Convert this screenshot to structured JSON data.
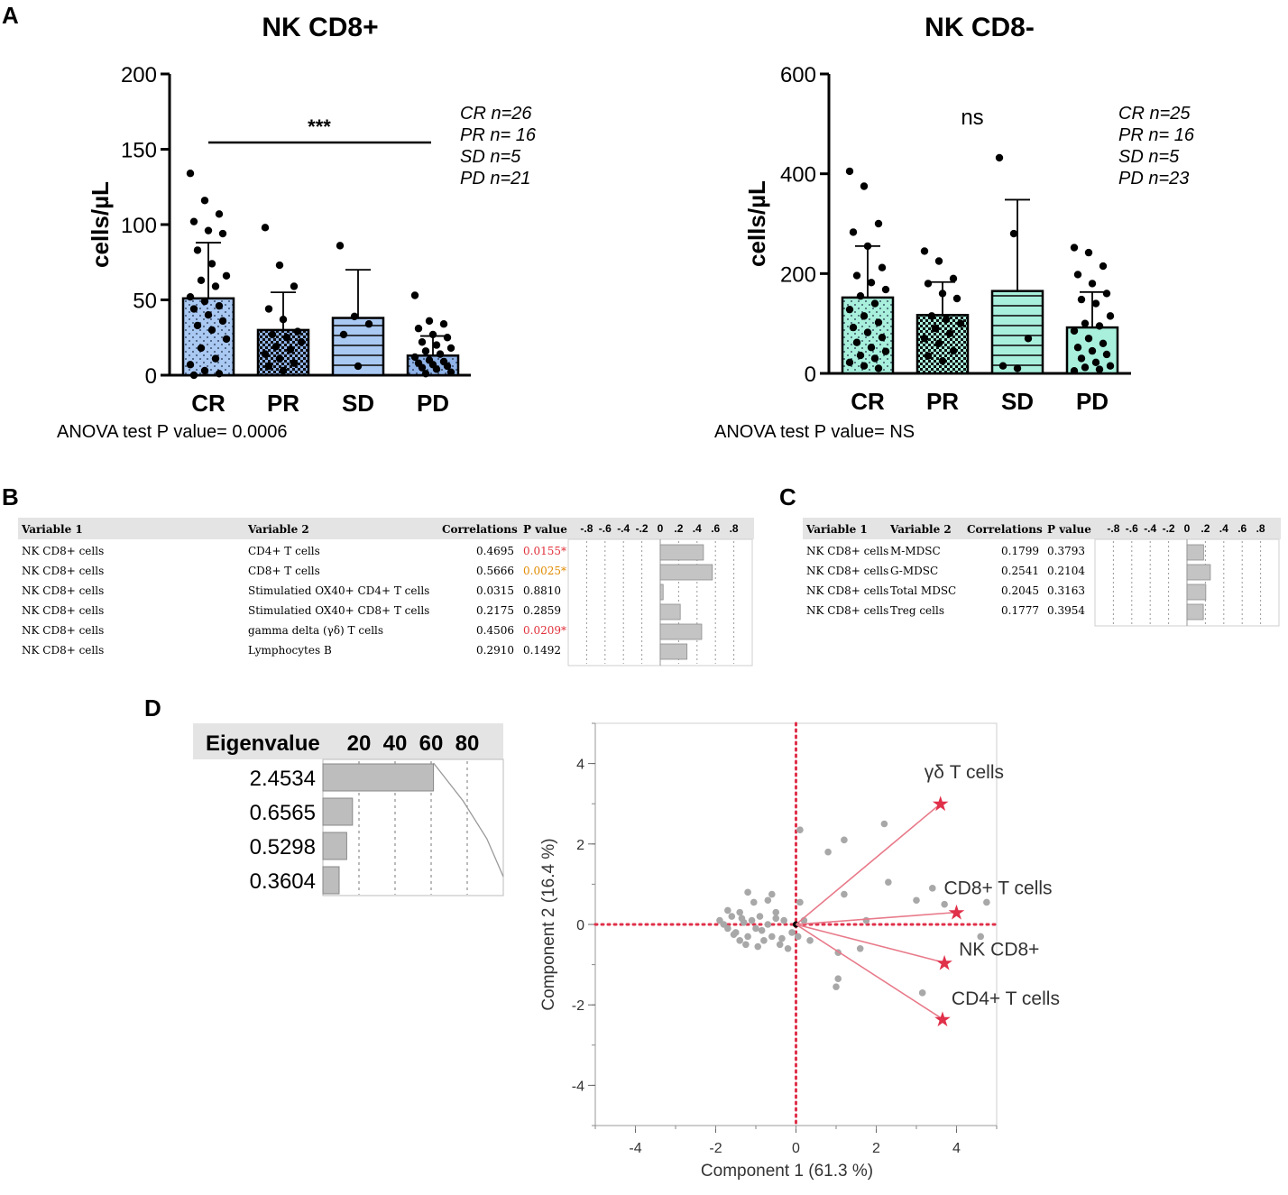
{
  "panel_letters": {
    "a": "A",
    "b": "B",
    "c": "C",
    "d": "D"
  },
  "chart_data": [
    {
      "type": "bar",
      "title": "NK CD8+",
      "ylabel": "cells/µL",
      "ylim": [
        0,
        200
      ],
      "yticks": [
        "0",
        "50",
        "100",
        "150",
        "200"
      ],
      "categories": [
        "CR",
        "PR",
        "SD",
        "PD"
      ],
      "values": [
        51,
        30,
        38,
        13
      ],
      "sd_upper": [
        88,
        55,
        70,
        26
      ],
      "fill_colors": [
        "#a9c8f2",
        "#8fb3e8",
        "#a9c8f2",
        "#8fb3e8"
      ],
      "patterns": [
        "dots",
        "checker",
        "hlines",
        "dots"
      ],
      "points": [
        [
          134,
          116,
          107,
          102,
          96,
          94,
          83,
          74,
          66,
          63,
          59,
          52,
          49,
          46,
          44,
          40,
          36,
          33,
          30,
          24,
          18,
          11,
          7,
          3,
          1,
          0
        ],
        [
          98,
          73,
          59,
          44,
          37,
          29,
          27,
          25,
          22,
          19,
          17,
          14,
          11,
          8,
          6,
          3
        ],
        [
          86,
          39,
          34,
          27,
          6
        ],
        [
          53,
          36,
          34,
          31,
          27,
          25,
          22,
          20,
          18,
          16,
          14,
          12,
          10,
          9,
          8,
          7,
          6,
          5,
          4,
          2,
          1
        ]
      ],
      "significance": "***",
      "n_labels": [
        "CR n=26",
        "PR n= 16",
        "SD n=5",
        "PD n=21"
      ],
      "footnote": "ANOVA test P value= 0.0006"
    },
    {
      "type": "bar",
      "title": "NK CD8-",
      "ylabel": "cells/µL",
      "ylim": [
        0,
        600
      ],
      "yticks": [
        "0",
        "200",
        "400",
        "600"
      ],
      "categories": [
        "CR",
        "PR",
        "SD",
        "PD"
      ],
      "values": [
        152,
        117,
        165,
        92
      ],
      "sd_upper": [
        255,
        183,
        348,
        163
      ],
      "fill_colors": [
        "#a8f0dc",
        "#a8f0dc",
        "#a8f0dc",
        "#a8f0dc"
      ],
      "patterns": [
        "dots",
        "checker",
        "hlines",
        "none"
      ],
      "points": [
        [
          405,
          375,
          300,
          283,
          255,
          212,
          196,
          182,
          168,
          155,
          140,
          128,
          115,
          102,
          92,
          82,
          72,
          62,
          52,
          44,
          36,
          30,
          22,
          15,
          10
        ],
        [
          245,
          225,
          190,
          180,
          160,
          150,
          115,
          108,
          100,
          90,
          80,
          70,
          60,
          45,
          35,
          25
        ],
        [
          432,
          280,
          70,
          15,
          10
        ],
        [
          252,
          242,
          215,
          198,
          180,
          160,
          148,
          140,
          115,
          100,
          95,
          85,
          70,
          60,
          52,
          45,
          38,
          30,
          22,
          15,
          12,
          8,
          5
        ]
      ],
      "significance": "ns",
      "n_labels": [
        "CR n=25",
        "PR n= 16",
        "SD n=5",
        "PD n=23"
      ],
      "footnote": "ANOVA test P value= NS"
    },
    {
      "type": "table",
      "headers": [
        "Variable 1",
        "Variable 2",
        "Correlations",
        "P value"
      ],
      "axis_ticks": [
        "-.8",
        "-.6",
        "-.4",
        "-.2",
        "0",
        ".2",
        ".4",
        ".6",
        ".8"
      ],
      "rows": [
        {
          "var1": "NK CD8+ cells",
          "var2": "CD4+ T cells",
          "corr": "0.4695",
          "corr_value": 0.4695,
          "p": "0.0155*",
          "p_color": "#e0303a"
        },
        {
          "var1": "NK CD8+ cells",
          "var2": "CD8+ T cells",
          "corr": "0.5666",
          "corr_value": 0.5666,
          "p": "0.0025*",
          "p_color": "#e08a00"
        },
        {
          "var1": "NK CD8+ cells",
          "var2": "Stimulatied  OX40+ CD4+ T cells",
          "corr": "0.0315",
          "corr_value": 0.0315,
          "p": "0.8810",
          "p_color": "#000000"
        },
        {
          "var1": "NK CD8+ cells",
          "var2": "Stimulatied  OX40+ CD8+ T cells",
          "corr": "0.2175",
          "corr_value": 0.2175,
          "p": "0.2859",
          "p_color": "#000000"
        },
        {
          "var1": "NK CD8+ cells",
          "var2": "gamma delta (γδ) T cells",
          "corr": "0.4506",
          "corr_value": 0.4506,
          "p": "0.0209*",
          "p_color": "#e0303a"
        },
        {
          "var1": "NK CD8+ cells",
          "var2": "Lymphocytes B",
          "corr": "0.2910",
          "corr_value": 0.291,
          "p": "0.1492",
          "p_color": "#000000"
        }
      ]
    },
    {
      "type": "table",
      "headers": [
        "Variable 1",
        "Variable 2",
        "Correlations",
        "P value"
      ],
      "axis_ticks": [
        "-.8",
        "-.6",
        "-.4",
        "-.2",
        "0",
        ".2",
        ".4",
        ".6",
        ".8"
      ],
      "rows": [
        {
          "var1": "NK CD8+ cells",
          "var2": "M-MDSC",
          "corr": "0.1799",
          "corr_value": 0.1799,
          "p": "0.3793"
        },
        {
          "var1": "NK CD8+ cells",
          "var2": "G-MDSC",
          "corr": "0.2541",
          "corr_value": 0.2541,
          "p": "0.2104"
        },
        {
          "var1": "NK CD8+ cells",
          "var2": "Total  MDSC",
          "corr": "0.2045",
          "corr_value": 0.2045,
          "p": "0.3163"
        },
        {
          "var1": "NK CD8+ cells",
          "var2": "Treg cells",
          "corr": "0.1777",
          "corr_value": 0.1777,
          "p": "0.3954"
        }
      ]
    },
    {
      "type": "bar",
      "title": "Eigenvalue",
      "axis_ticks": [
        "20",
        "40",
        "60",
        "80"
      ],
      "labels": [
        "2.4534",
        "0.6565",
        "0.5298",
        "0.3604"
      ],
      "values": [
        2.4534,
        0.6565,
        0.5298,
        0.3604
      ],
      "percent": [
        61.3,
        16.4,
        13.2,
        9.0
      ],
      "cumulative_percent": [
        61.3,
        77.7,
        90.9,
        100.0
      ]
    },
    {
      "type": "scatter",
      "xlabel": "Component 1  (61.3 %)",
      "ylabel": "Component 2  (16.4 %)",
      "xlim": [
        -5,
        5
      ],
      "ylim": [
        -5,
        5
      ],
      "xticks": [
        "-4",
        "-2",
        "0",
        "2",
        "4"
      ],
      "yticks": [
        "4",
        "2",
        "0",
        "-2",
        "-4"
      ],
      "loadings": [
        {
          "label": "γδ T cells",
          "x": 3.6,
          "y": 3.0
        },
        {
          "label": "CD8+ T cells",
          "x": 4.0,
          "y": 0.3
        },
        {
          "label": "NK CD8+",
          "x": 3.7,
          "y": -0.95
        },
        {
          "label": "CD4+ T cells",
          "x": 3.65,
          "y": -2.35
        }
      ],
      "points": [
        [
          -1.9,
          0.1
        ],
        [
          -1.8,
          0.0
        ],
        [
          -1.7,
          -0.1
        ],
        [
          -1.6,
          0.2
        ],
        [
          -1.5,
          -0.2
        ],
        [
          -1.4,
          0.3
        ],
        [
          -1.3,
          0.05
        ],
        [
          -1.2,
          -0.3
        ],
        [
          -1.1,
          0.1
        ],
        [
          -1.0,
          -0.1
        ],
        [
          -0.9,
          0.2
        ],
        [
          -0.8,
          -0.4
        ],
        [
          -0.7,
          0.0
        ],
        [
          -0.6,
          -0.3
        ],
        [
          -0.5,
          0.15
        ],
        [
          -0.4,
          -0.5
        ],
        [
          -0.3,
          0.1
        ],
        [
          -0.2,
          -0.6
        ],
        [
          -0.1,
          -0.2
        ],
        [
          -0.6,
          0.75
        ],
        [
          -0.7,
          0.6
        ],
        [
          -1.05,
          0.55
        ],
        [
          -1.2,
          0.8
        ],
        [
          -0.5,
          0.3
        ],
        [
          0.1,
          2.35
        ],
        [
          0.1,
          0.55
        ],
        [
          0.2,
          0.1
        ],
        [
          0.35,
          -0.4
        ],
        [
          0.8,
          1.8
        ],
        [
          1.2,
          2.1
        ],
        [
          1.2,
          0.75
        ],
        [
          2.2,
          2.5
        ],
        [
          2.3,
          1.05
        ],
        [
          3.0,
          0.6
        ],
        [
          3.4,
          0.9
        ],
        [
          1.75,
          0.1
        ],
        [
          1.05,
          -0.7
        ],
        [
          1.6,
          -0.6
        ],
        [
          1.05,
          -1.35
        ],
        [
          1.0,
          -1.55
        ],
        [
          3.15,
          -1.7
        ],
        [
          3.7,
          0.5
        ],
        [
          4.6,
          -0.3
        ],
        [
          4.75,
          0.55
        ],
        [
          -1.4,
          -0.4
        ],
        [
          -1.55,
          -0.25
        ],
        [
          -1.25,
          -0.5
        ],
        [
          -0.95,
          -0.55
        ],
        [
          -0.85,
          -0.15
        ],
        [
          -0.35,
          -0.35
        ],
        [
          -1.7,
          0.35
        ],
        [
          -1.35,
          0.15
        ],
        [
          0.05,
          -0.3
        ]
      ]
    }
  ]
}
